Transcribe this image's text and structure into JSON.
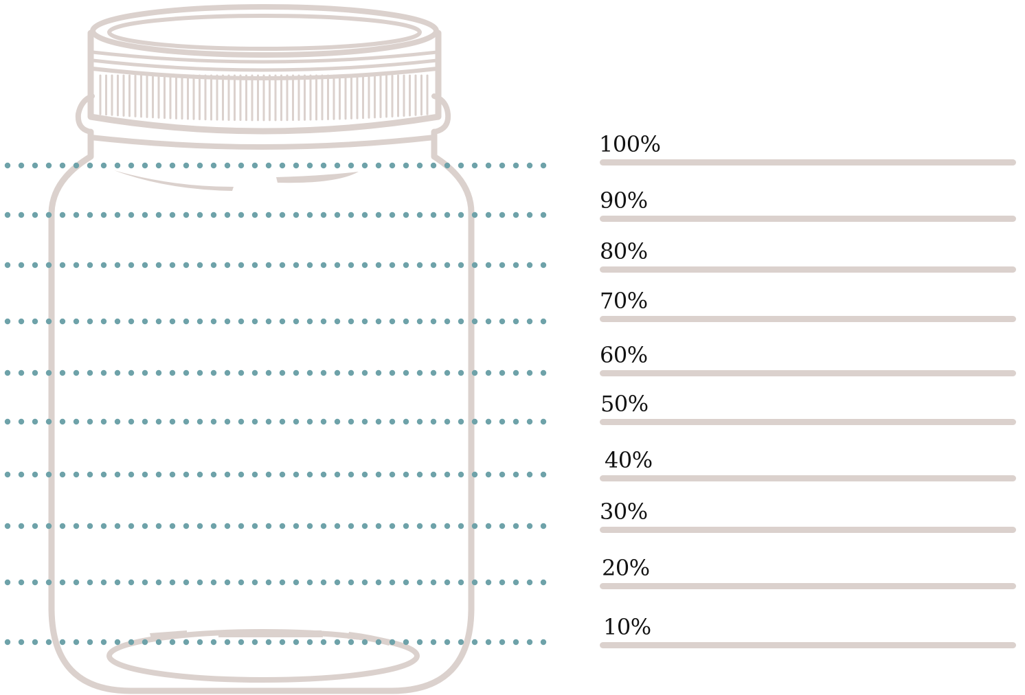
{
  "colors": {
    "jar_outline": "#dbd1cd",
    "dotted_line": "#6ea2a9",
    "writing_line": "#dbd1cd",
    "label_text": "#111111"
  },
  "levels": [
    {
      "label": "100%",
      "value": 100
    },
    {
      "label": "90%",
      "value": 90
    },
    {
      "label": "80%",
      "value": 80
    },
    {
      "label": "70%",
      "value": 70
    },
    {
      "label": "60%",
      "value": 60
    },
    {
      "label": "50%",
      "value": 50
    },
    {
      "label": "40%",
      "value": 40
    },
    {
      "label": "30%",
      "value": 30
    },
    {
      "label": "20%",
      "value": 20
    },
    {
      "label": "10%",
      "value": 10
    }
  ]
}
